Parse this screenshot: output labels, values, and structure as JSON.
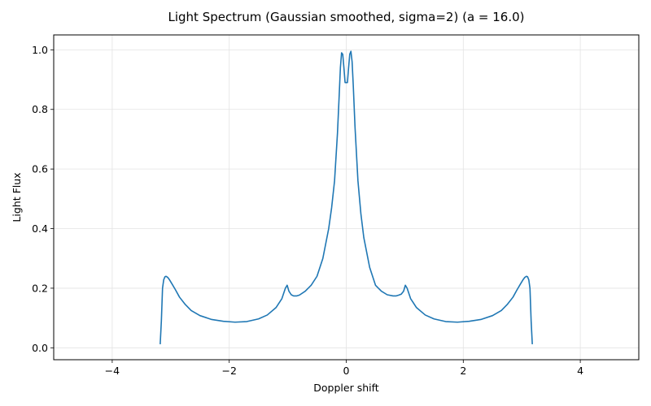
{
  "chart_data": {
    "type": "line",
    "title": "Light Spectrum (Gaussian smoothed, sigma=2) (a = 16.0)",
    "xlabel": "Doppler shift",
    "ylabel": "Light Flux",
    "xlim": [
      -5,
      5
    ],
    "ylim": [
      -0.04,
      1.05
    ],
    "xticks": [
      -4,
      -2,
      0,
      2,
      4
    ],
    "xtick_labels": [
      "−4",
      "−2",
      "0",
      "2",
      "4"
    ],
    "yticks": [
      0.0,
      0.2,
      0.4,
      0.6,
      0.8,
      1.0
    ],
    "ytick_labels": [
      "0.0",
      "0.2",
      "0.4",
      "0.6",
      "0.8",
      "1.0"
    ],
    "grid": true,
    "series": [
      {
        "color": "#1f77b4",
        "x": [
          -3.18,
          -3.16,
          -3.14,
          -3.12,
          -3.1,
          -3.08,
          -3.05,
          -3.02,
          -2.98,
          -2.92,
          -2.85,
          -2.75,
          -2.65,
          -2.5,
          -2.3,
          -2.1,
          -1.9,
          -1.7,
          -1.5,
          -1.35,
          -1.2,
          -1.1,
          -1.04,
          -1.01,
          -0.98,
          -0.94,
          -0.9,
          -0.85,
          -0.8,
          -0.7,
          -0.6,
          -0.5,
          -0.4,
          -0.3,
          -0.25,
          -0.2,
          -0.15,
          -0.12,
          -0.1,
          -0.08,
          -0.06,
          -0.04,
          -0.02,
          0.0,
          0.02,
          0.04,
          0.06,
          0.08,
          0.1,
          0.12,
          0.15,
          0.2,
          0.25,
          0.3,
          0.4,
          0.5,
          0.6,
          0.7,
          0.8,
          0.85,
          0.9,
          0.94,
          0.98,
          1.01,
          1.04,
          1.1,
          1.2,
          1.35,
          1.5,
          1.7,
          1.9,
          2.1,
          2.3,
          2.5,
          2.65,
          2.75,
          2.85,
          2.92,
          2.98,
          3.02,
          3.05,
          3.08,
          3.1,
          3.12,
          3.14,
          3.16,
          3.18
        ],
        "y": [
          0.012,
          0.09,
          0.2,
          0.228,
          0.238,
          0.24,
          0.236,
          0.228,
          0.215,
          0.195,
          0.17,
          0.145,
          0.125,
          0.108,
          0.095,
          0.089,
          0.086,
          0.088,
          0.097,
          0.11,
          0.135,
          0.165,
          0.2,
          0.21,
          0.19,
          0.178,
          0.174,
          0.174,
          0.177,
          0.19,
          0.21,
          0.24,
          0.3,
          0.4,
          0.47,
          0.56,
          0.72,
          0.85,
          0.94,
          0.99,
          0.985,
          0.94,
          0.89,
          0.89,
          0.89,
          0.94,
          0.985,
          0.995,
          0.96,
          0.88,
          0.74,
          0.56,
          0.45,
          0.37,
          0.27,
          0.21,
          0.19,
          0.178,
          0.174,
          0.174,
          0.177,
          0.18,
          0.19,
          0.21,
          0.2,
          0.165,
          0.135,
          0.11,
          0.097,
          0.088,
          0.086,
          0.089,
          0.095,
          0.108,
          0.125,
          0.145,
          0.17,
          0.195,
          0.215,
          0.228,
          0.236,
          0.24,
          0.238,
          0.228,
          0.2,
          0.09,
          0.012
        ]
      }
    ]
  }
}
